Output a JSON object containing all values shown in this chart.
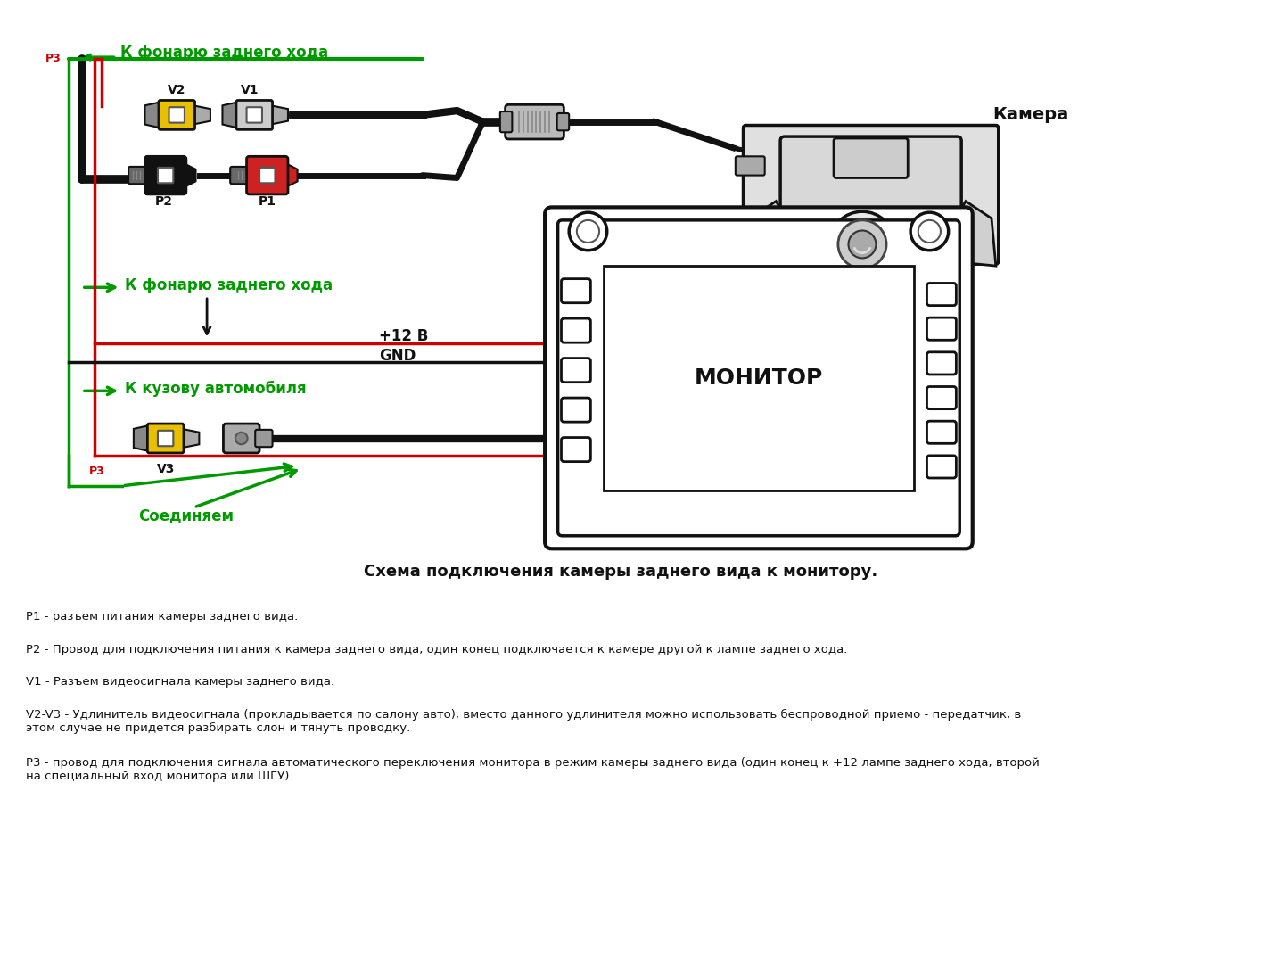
{
  "bg_color": "#ffffff",
  "title": "Схема подключения камеры заднего вида к монитору.",
  "green_color": "#009900",
  "red_color": "#cc0000",
  "black_color": "#111111",
  "yellow_color": "#e8c000",
  "gray_color": "#888888",
  "light_gray": "#cccccc",
  "top_label": "К фонарю заднего хода",
  "mid_label": "К фонарю заднего хода",
  "kuzov_label": "К кузову автомобиля",
  "soed_label": "Соединяем",
  "camera_label": "Камера",
  "monitor_label": "МОНИТОР",
  "p12v_label": "+12 В",
  "gnd_label": "GND",
  "p3_label": "P3",
  "v1_label": "V1",
  "v2_label": "V2",
  "v3_label": "V3",
  "p1_label": "P1",
  "p2_label": "P2",
  "desc1": "P1 - разъем питания камеры заднего вида.",
  "desc2": "P2 - Провод для подключения питания к камера заднего вида, один конец подключается к камере другой к лампе заднего хода.",
  "desc3": "V1 - Разъем видеосигнала камеры заднего вида.",
  "desc4": "V2-V3 - Удлинитель видеосигнала (прокладывается по салону авто), вместо данного удлинителя можно использовать беспроводной приемо - передатчик, в\nэтом случае не придется разбирать слон и тянуть проводку.",
  "desc5": "Р3 - провод для подключения сигнала автоматического переключения монитора в режим камеры заднего вида (один конец к +12 лампе заднего хода, второй\nна специальный вход монитора или ШГУ)"
}
